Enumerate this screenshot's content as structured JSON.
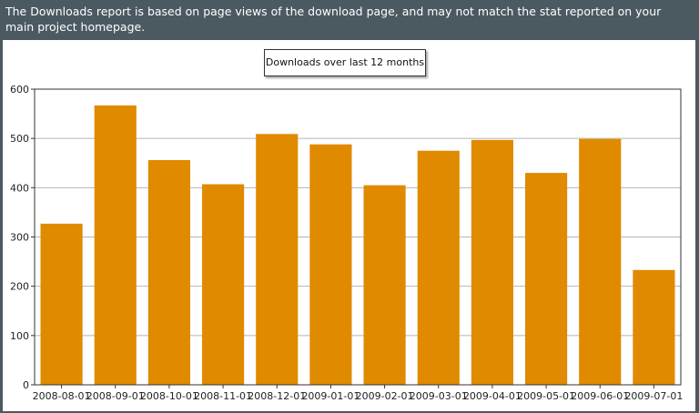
{
  "notice_text": "The Downloads report is based on page views of the download page, and may not match the stat reported on your main project homepage.",
  "chart_data": {
    "type": "bar",
    "title": "Downloads over last 12 months",
    "categories": [
      "2008-08-01",
      "2008-09-01",
      "2008-10-01",
      "2008-11-01",
      "2008-12-01",
      "2009-01-01",
      "2009-02-01",
      "2009-03-01",
      "2009-04-01",
      "2009-05-01",
      "2009-06-01",
      "2009-07-01"
    ],
    "values": [
      327,
      567,
      456,
      407,
      509,
      488,
      405,
      475,
      497,
      430,
      499,
      233
    ],
    "xlabel": "",
    "ylabel": "",
    "ylim": [
      0,
      600
    ],
    "yticks": [
      0,
      100,
      200,
      300,
      400,
      500,
      600
    ],
    "grid": true,
    "bar_color": "#e08a00"
  }
}
